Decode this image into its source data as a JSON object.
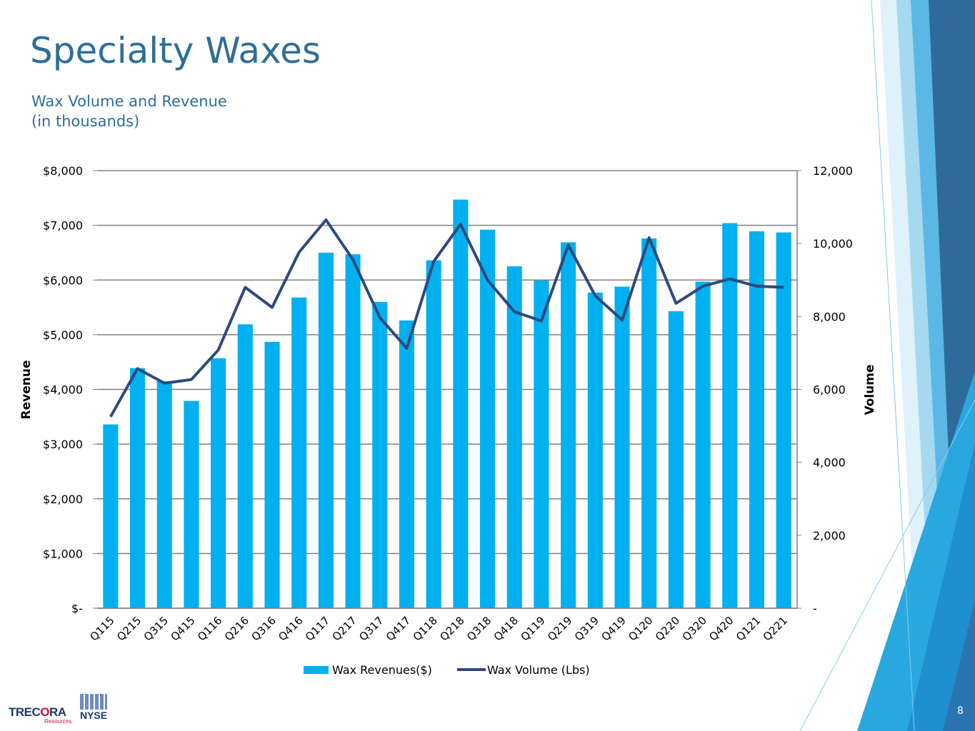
{
  "slide": {
    "title": "Specialty Waxes",
    "subtitle_line1": "Wax Volume and Revenue",
    "subtitle_line2": "(in thousands)",
    "page_number": "8",
    "logo_name_pre": "TREC",
    "logo_name_o": "O",
    "logo_name_post": "RA",
    "logo_sub": "Resources",
    "exchange_logo": "NYSE"
  },
  "colors": {
    "bar": "#00b0f0",
    "line": "#2e4a7d",
    "title": "#2d6e99",
    "grid": "#808080"
  },
  "chart_data": {
    "type": "bar",
    "categories": [
      "Q115",
      "Q215",
      "Q315",
      "Q415",
      "Q116",
      "Q216",
      "Q316",
      "Q416",
      "Q117",
      "Q217",
      "Q317",
      "Q417",
      "Q118",
      "Q218",
      "Q318",
      "Q418",
      "Q119",
      "Q219",
      "Q319",
      "Q419",
      "Q120",
      "Q220",
      "Q320",
      "Q420",
      "Q121",
      "Q221"
    ],
    "series": [
      {
        "name": "Wax Revenues($)",
        "type": "bar",
        "axis": "left",
        "values": [
          3360,
          4390,
          4150,
          3790,
          4570,
          5190,
          4870,
          5680,
          6500,
          6470,
          5600,
          5260,
          6360,
          7470,
          6920,
          6250,
          5990,
          6690,
          5770,
          5880,
          6760,
          5430,
          5970,
          7040,
          6890,
          6870
        ]
      },
      {
        "name": "Wax Volume (Lbs)",
        "type": "line",
        "axis": "right",
        "values": [
          5250,
          6570,
          6170,
          6270,
          7080,
          8800,
          8250,
          9760,
          10650,
          9560,
          7970,
          7130,
          9510,
          10530,
          9000,
          8130,
          7880,
          9960,
          8570,
          7900,
          10160,
          8360,
          8830,
          9030,
          8830,
          8800
        ]
      }
    ],
    "ylabel": "Revenue",
    "y2label": "Volume",
    "ylim": [
      0,
      8000
    ],
    "y2lim": [
      0,
      12000
    ],
    "yticks": [
      0,
      1000,
      2000,
      3000,
      4000,
      5000,
      6000,
      7000,
      8000
    ],
    "yticklabels": [
      "$-",
      "$1,000",
      "$2,000",
      "$3,000",
      "$4,000",
      "$5,000",
      "$6,000",
      "$7,000",
      "$8,000"
    ],
    "y2ticks": [
      0,
      2000,
      4000,
      6000,
      8000,
      10000,
      12000
    ],
    "y2ticklabels": [
      "-",
      "2,000",
      "4,000",
      "6,000",
      "8,000",
      "10,000",
      "12,000"
    ],
    "grid": true,
    "legend": "bottom"
  }
}
